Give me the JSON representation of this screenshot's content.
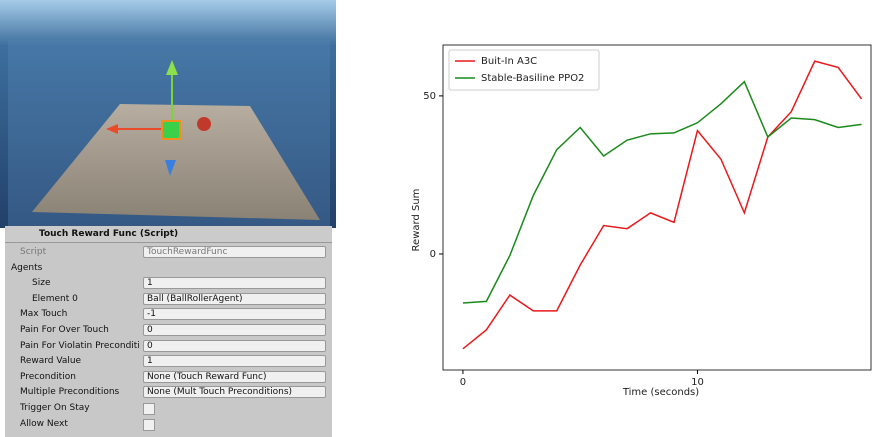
{
  "inspector": {
    "title": "Touch Reward Func (Script)",
    "rows": [
      {
        "label": "Script",
        "value": "TouchRewardFunc"
      },
      {
        "label": "Agents"
      },
      {
        "label": "Size",
        "value": "1"
      },
      {
        "label": "Element 0",
        "value": "Ball (BallRollerAgent)"
      },
      {
        "label": "Max Touch",
        "value": "-1"
      },
      {
        "label": "Pain For Over Touch",
        "value": "0"
      },
      {
        "label": "Pain For Violatin Preconditi",
        "value": "0"
      },
      {
        "label": "Reward Value",
        "value": "1"
      },
      {
        "label": "Precondition",
        "value": "None (Touch Reward Func)"
      },
      {
        "label": "Multiple Preconditions",
        "value": "None (Mult Touch Preconditions)"
      },
      {
        "label": "Trigger On Stay"
      },
      {
        "label": "Allow Next"
      }
    ]
  },
  "chart_data": {
    "type": "line",
    "x_label": "Time (seconds)",
    "y_label": "Reward Sum",
    "x": [
      0,
      1,
      2,
      3,
      4,
      5,
      6,
      7,
      8,
      9,
      10,
      11,
      12,
      13,
      14,
      15,
      16,
      17
    ],
    "series": [
      {
        "name": "Buit-In A3C",
        "color": "#e8191c",
        "values": [
          -30,
          -24,
          -13,
          -18,
          -18,
          -3.5,
          9,
          8,
          13,
          10,
          39,
          30,
          13,
          37,
          45,
          61,
          59,
          49
        ]
      },
      {
        "name": "Stable-Basiline PPO2",
        "color": "#1b8a1b",
        "values": [
          -15.5,
          -15,
          -0.5,
          18.5,
          33,
          40,
          31,
          36,
          38,
          38.3,
          41.5,
          47.5,
          54.5,
          37,
          43,
          42.5,
          40,
          41
        ]
      }
    ],
    "xlim": [
      -0.85,
      17.4
    ],
    "ylim": [
      -36.7,
      66.1
    ],
    "xticks": [
      0,
      10
    ],
    "yticks": [
      0,
      50
    ],
    "legend": "upper left"
  }
}
